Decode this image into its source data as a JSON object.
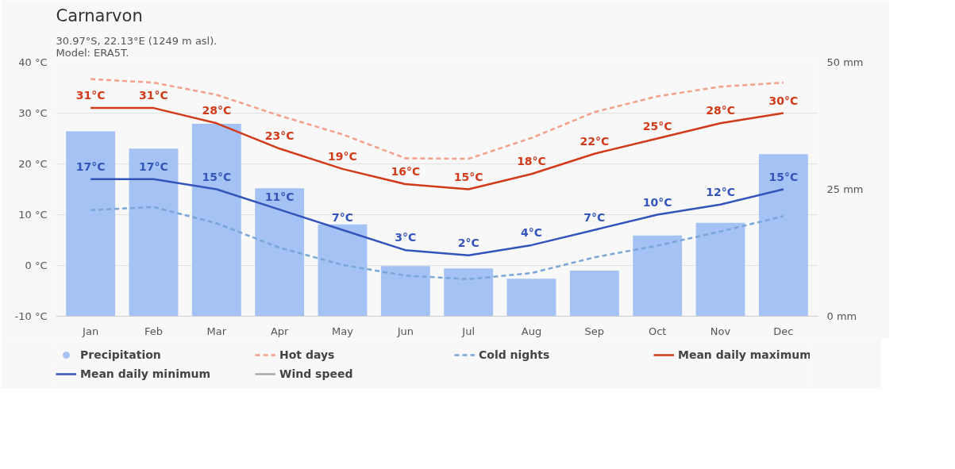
{
  "chart_data": {
    "type": "line",
    "title": "Carnarvon",
    "subtitle": "30.97°S, 22.13°E (1249 m asl).\nModel: ERA5T.",
    "categories": [
      "Jan",
      "Feb",
      "Mar",
      "Apr",
      "May",
      "Jun",
      "Jul",
      "Aug",
      "Sep",
      "Oct",
      "Nov",
      "Dec"
    ],
    "series": [
      {
        "name": "Precipitation",
        "type": "bar",
        "axis": "y2",
        "color": "#a4c2f4",
        "values": [
          36.4,
          33.0,
          37.9,
          25.2,
          18.1,
          9.9,
          9.4,
          7.4,
          9.0,
          15.9,
          18.4,
          31.9
        ]
      },
      {
        "name": "Hot days",
        "line_style": "dashed",
        "color": "#f4a08a",
        "values": [
          36.7,
          36.0,
          33.6,
          29.5,
          25.8,
          21.1,
          21.0,
          25.1,
          30.2,
          33.3,
          35.2,
          36.0
        ]
      },
      {
        "name": "Cold nights",
        "line_style": "dashed",
        "color": "#7aa6d8",
        "values": [
          10.9,
          11.5,
          8.3,
          3.5,
          0.1,
          -2.0,
          -2.7,
          -1.5,
          1.6,
          3.9,
          6.7,
          9.7
        ]
      },
      {
        "name": "Mean daily maximum",
        "line_style": "solid",
        "color": "#d13b1a",
        "values": [
          31,
          31,
          28,
          23,
          19,
          16,
          15,
          18,
          22,
          25,
          28,
          30
        ],
        "value_labels": [
          "31°C",
          "31°C",
          "28°C",
          "23°C",
          "19°C",
          "16°C",
          "15°C",
          "18°C",
          "22°C",
          "25°C",
          "28°C",
          "30°C"
        ]
      },
      {
        "name": "Mean daily minimum",
        "line_style": "solid",
        "color": "#3355bb",
        "values": [
          17,
          17,
          15,
          11,
          7,
          3,
          2,
          4,
          7,
          10,
          12,
          15
        ],
        "value_labels": [
          "17°C",
          "17°C",
          "15°C",
          "11°C",
          "7°C",
          "3°C",
          "2°C",
          "4°C",
          "7°C",
          "10°C",
          "12°C",
          "15°C"
        ]
      },
      {
        "name": "Wind speed",
        "line_style": "solid",
        "color": "#aaaaaa",
        "values": [
          null,
          null,
          null,
          null,
          null,
          null,
          null,
          null,
          null,
          null,
          null,
          null
        ]
      }
    ],
    "ylim": [
      -10,
      40
    ],
    "yticks": [
      {
        "value": -10,
        "label": "-10 °C"
      },
      {
        "value": 0,
        "label": "0 °C"
      },
      {
        "value": 10,
        "label": "10 °C"
      },
      {
        "value": 20,
        "label": "20 °C"
      },
      {
        "value": 30,
        "label": "30 °C"
      },
      {
        "value": 40,
        "label": "40 °C"
      }
    ],
    "y2lim": [
      0,
      50
    ],
    "y2ticks": [
      {
        "value": 0,
        "label": "0 mm"
      },
      {
        "value": 25,
        "label": "25 mm"
      },
      {
        "value": 50,
        "label": "50 mm"
      }
    ],
    "grid": "y",
    "legend": "bottom",
    "marker": "none"
  }
}
